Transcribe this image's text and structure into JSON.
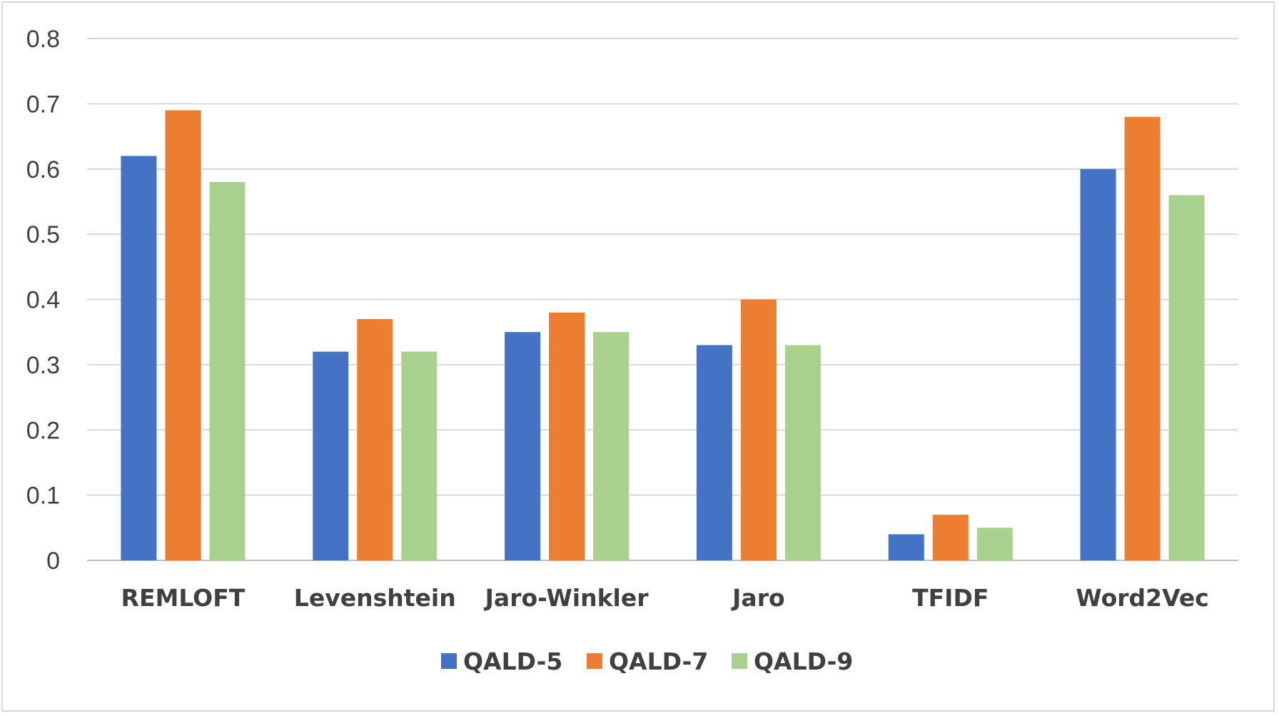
{
  "chart_data": {
    "type": "bar",
    "title": "",
    "xlabel": "",
    "ylabel": "",
    "categories": [
      "REMLOFT",
      "Levenshtein",
      "Jaro-Winkler",
      "Jaro",
      "TFIDF",
      "Word2Vec"
    ],
    "series": [
      {
        "name": "QALD-5",
        "color": "#4472C4",
        "values": [
          0.62,
          0.32,
          0.35,
          0.33,
          0.04,
          0.6
        ]
      },
      {
        "name": "QALD-7",
        "color": "#ED7D31",
        "values": [
          0.69,
          0.37,
          0.38,
          0.4,
          0.07,
          0.68
        ]
      },
      {
        "name": "QALD-9",
        "color": "#A9D18E",
        "values": [
          0.58,
          0.32,
          0.35,
          0.33,
          0.05,
          0.56
        ]
      }
    ],
    "ylim": [
      0,
      0.8
    ],
    "yticks": [
      0,
      0.1,
      0.2,
      0.3,
      0.4,
      0.5,
      0.6,
      0.7,
      0.8
    ],
    "ytick_labels": [
      "0",
      "0.1",
      "0.2",
      "0.3",
      "0.4",
      "0.5",
      "0.6",
      "0.7",
      "0.8"
    ],
    "grid": true,
    "legend_position": "bottom"
  }
}
